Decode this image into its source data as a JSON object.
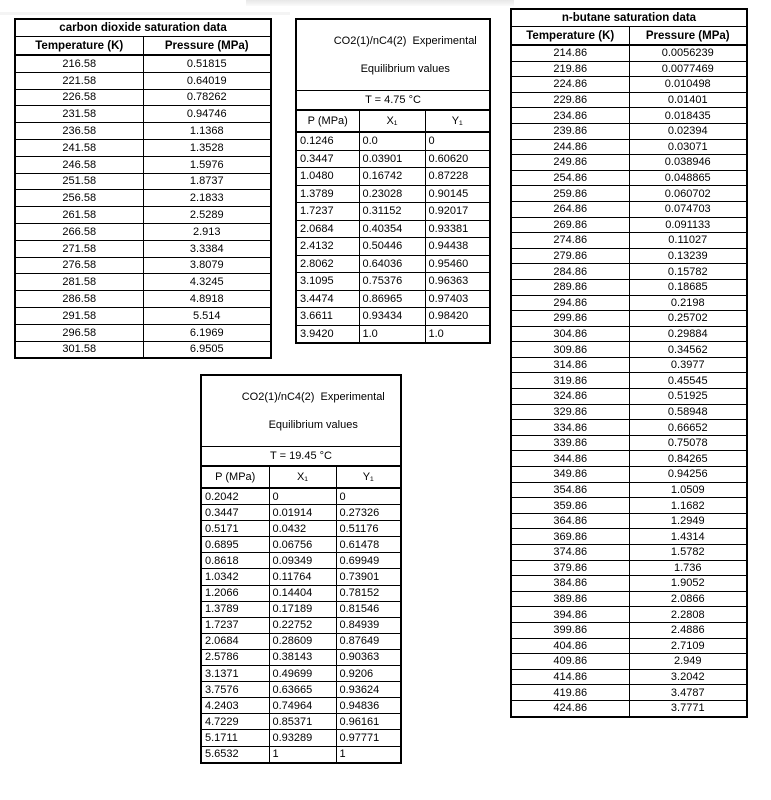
{
  "page": {
    "background": "#ffffff",
    "table_border_color": "#000000",
    "text_color": "#000000"
  },
  "co2_saturation": {
    "title": "carbon dioxide saturation data",
    "columns": [
      "Temperature (K)",
      "Pressure (MPa)"
    ],
    "rows": [
      [
        "216.58",
        "0.51815"
      ],
      [
        "221.58",
        "0.64019"
      ],
      [
        "226.58",
        "0.78262"
      ],
      [
        "231.58",
        "0.94746"
      ],
      [
        "236.58",
        "1.1368"
      ],
      [
        "241.58",
        "1.3528"
      ],
      [
        "246.58",
        "1.5976"
      ],
      [
        "251.58",
        "1.8737"
      ],
      [
        "256.58",
        "2.1833"
      ],
      [
        "261.58",
        "2.5289"
      ],
      [
        "266.58",
        "2.913"
      ],
      [
        "271.58",
        "3.3384"
      ],
      [
        "276.58",
        "3.8079"
      ],
      [
        "281.58",
        "4.3245"
      ],
      [
        "286.58",
        "4.8918"
      ],
      [
        "291.58",
        "5.514"
      ],
      [
        "296.58",
        "6.1969"
      ],
      [
        "301.58",
        "6.9505"
      ]
    ]
  },
  "equilibrium_t475": {
    "title_line1": "CO2(1)/nC4(2)  Experimental",
    "title_line2": "Equilibrium values",
    "temperature": "T = 4.75 °C",
    "columns": [
      "P (MPa)",
      "X₁",
      "Y₁"
    ],
    "rows": [
      [
        "0.1246",
        "0.0",
        "0"
      ],
      [
        "0.3447",
        "0.03901",
        "0.60620"
      ],
      [
        "1.0480",
        "0.16742",
        "0.87228"
      ],
      [
        "1.3789",
        "0.23028",
        "0.90145"
      ],
      [
        "1.7237",
        "0.31152",
        "0.92017"
      ],
      [
        "2.0684",
        "0.40354",
        "0.93381"
      ],
      [
        "2.4132",
        "0.50446",
        "0.94438"
      ],
      [
        "2.8062",
        "0.64036",
        "0.95460"
      ],
      [
        "3.1095",
        "0.75376",
        "0.96363"
      ],
      [
        "3.4474",
        "0.86965",
        "0.97403"
      ],
      [
        "3.6611",
        "0.93434",
        "0.98420"
      ],
      [
        "3.9420",
        "1.0",
        "1.0"
      ]
    ]
  },
  "equilibrium_t1945": {
    "title_line1": "CO2(1)/nC4(2)  Experimental",
    "title_line2": "Equilibrium values",
    "temperature": "T = 19.45 °C",
    "columns": [
      "P (MPa)",
      "X₁",
      "Y₁"
    ],
    "rows": [
      [
        "0.2042",
        "0",
        "0"
      ],
      [
        "0.3447",
        "0.01914",
        "0.27326"
      ],
      [
        "0.5171",
        "0.0432",
        "0.51176"
      ],
      [
        "0.6895",
        "0.06756",
        "0.61478"
      ],
      [
        "0.8618",
        "0.09349",
        "0.69949"
      ],
      [
        "1.0342",
        "0.11764",
        "0.73901"
      ],
      [
        "1.2066",
        "0.14404",
        "0.78152"
      ],
      [
        "1.3789",
        "0.17189",
        "0.81546"
      ],
      [
        "1.7237",
        "0.22752",
        "0.84939"
      ],
      [
        "2.0684",
        "0.28609",
        "0.87649"
      ],
      [
        "2.5786",
        "0.38143",
        "0.90363"
      ],
      [
        "3.1371",
        "0.49699",
        "0.9206"
      ],
      [
        "3.7576",
        "0.63665",
        "0.93624"
      ],
      [
        "4.2403",
        "0.74964",
        "0.94836"
      ],
      [
        "4.7229",
        "0.85371",
        "0.96161"
      ],
      [
        "5.1711",
        "0.93289",
        "0.97771"
      ],
      [
        "5.6532",
        "1",
        "1"
      ]
    ]
  },
  "nbutane_saturation": {
    "title": "n-butane saturation data",
    "columns": [
      "Temperature (K)",
      "Pressure (MPa)"
    ],
    "rows": [
      [
        "214.86",
        "0.0056239"
      ],
      [
        "219.86",
        "0.0077469"
      ],
      [
        "224.86",
        "0.010498"
      ],
      [
        "229.86",
        "0.01401"
      ],
      [
        "234.86",
        "0.018435"
      ],
      [
        "239.86",
        "0.02394"
      ],
      [
        "244.86",
        "0.03071"
      ],
      [
        "249.86",
        "0.038946"
      ],
      [
        "254.86",
        "0.048865"
      ],
      [
        "259.86",
        "0.060702"
      ],
      [
        "264.86",
        "0.074703"
      ],
      [
        "269.86",
        "0.091133"
      ],
      [
        "274.86",
        "0.11027"
      ],
      [
        "279.86",
        "0.13239"
      ],
      [
        "284.86",
        "0.15782"
      ],
      [
        "289.86",
        "0.18685"
      ],
      [
        "294.86",
        "0.2198"
      ],
      [
        "299.86",
        "0.25702"
      ],
      [
        "304.86",
        "0.29884"
      ],
      [
        "309.86",
        "0.34562"
      ],
      [
        "314.86",
        "0.3977"
      ],
      [
        "319.86",
        "0.45545"
      ],
      [
        "324.86",
        "0.51925"
      ],
      [
        "329.86",
        "0.58948"
      ],
      [
        "334.86",
        "0.66652"
      ],
      [
        "339.86",
        "0.75078"
      ],
      [
        "344.86",
        "0.84265"
      ],
      [
        "349.86",
        "0.94256"
      ],
      [
        "354.86",
        "1.0509"
      ],
      [
        "359.86",
        "1.1682"
      ],
      [
        "364.86",
        "1.2949"
      ],
      [
        "369.86",
        "1.4314"
      ],
      [
        "374.86",
        "1.5782"
      ],
      [
        "379.86",
        "1.736"
      ],
      [
        "384.86",
        "1.9052"
      ],
      [
        "389.86",
        "2.0866"
      ],
      [
        "394.86",
        "2.2808"
      ],
      [
        "399.86",
        "2.4886"
      ],
      [
        "404.86",
        "2.7109"
      ],
      [
        "409.86",
        "2.949"
      ],
      [
        "414.86",
        "3.2042"
      ],
      [
        "419.86",
        "3.4787"
      ],
      [
        "424.86",
        "3.7771"
      ]
    ]
  }
}
